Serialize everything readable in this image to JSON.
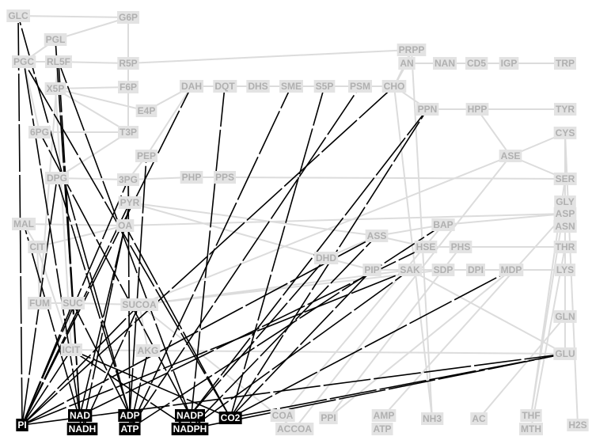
{
  "diagram": {
    "nodes": [
      {
        "id": "GLC",
        "label": "GLC",
        "style": "grey"
      },
      {
        "id": "G6P",
        "label": "G6P",
        "style": "grey"
      },
      {
        "id": "PGL",
        "label": "PGL",
        "style": "grey"
      },
      {
        "id": "PGC",
        "label": "PGC",
        "style": "grey"
      },
      {
        "id": "RL5P",
        "label": "RL5F",
        "style": "grey"
      },
      {
        "id": "R5P",
        "label": "R5P",
        "style": "grey"
      },
      {
        "id": "PRPP",
        "label": "PRPP",
        "style": "grey"
      },
      {
        "id": "F6P",
        "label": "F6P",
        "style": "grey"
      },
      {
        "id": "X5P",
        "label": "X5P",
        "style": "grey"
      },
      {
        "id": "E4P",
        "label": "E4P",
        "style": "grey"
      },
      {
        "id": "6PG",
        "label": "6PG",
        "style": "grey"
      },
      {
        "id": "T3P",
        "label": "T3P",
        "style": "grey"
      },
      {
        "id": "PEP",
        "label": "PEP",
        "style": "grey"
      },
      {
        "id": "DPG",
        "label": "DPG",
        "style": "grey"
      },
      {
        "id": "3PG",
        "label": "3PG",
        "style": "grey"
      },
      {
        "id": "PYR",
        "label": "PYR",
        "style": "grey"
      },
      {
        "id": "OA",
        "label": "OA",
        "style": "grey"
      },
      {
        "id": "MAL",
        "label": "MAL",
        "style": "grey"
      },
      {
        "id": "CIT",
        "label": "CIT",
        "style": "grey"
      },
      {
        "id": "FUM",
        "label": "FUM",
        "style": "grey"
      },
      {
        "id": "SUC",
        "label": "SUC",
        "style": "grey"
      },
      {
        "id": "SUCOA",
        "label": "SUCOA",
        "style": "grey"
      },
      {
        "id": "ICIT",
        "label": "ICIT",
        "style": "grey"
      },
      {
        "id": "AKG",
        "label": "AKG",
        "style": "grey"
      },
      {
        "id": "DAH",
        "label": "DAH",
        "style": "grey"
      },
      {
        "id": "DQT",
        "label": "DQT",
        "style": "grey"
      },
      {
        "id": "DHS",
        "label": "DHS",
        "style": "grey"
      },
      {
        "id": "SME",
        "label": "SME",
        "style": "grey"
      },
      {
        "id": "S5P",
        "label": "S5P",
        "style": "grey"
      },
      {
        "id": "PSM",
        "label": "PSM",
        "style": "grey"
      },
      {
        "id": "CHO",
        "label": "CHO",
        "style": "grey"
      },
      {
        "id": "AN",
        "label": "AN",
        "style": "grey"
      },
      {
        "id": "NAN",
        "label": "NAN",
        "style": "grey"
      },
      {
        "id": "CD5",
        "label": "CD5",
        "style": "grey"
      },
      {
        "id": "IGP",
        "label": "IGP",
        "style": "grey"
      },
      {
        "id": "TRP",
        "label": "TRP",
        "style": "grey"
      },
      {
        "id": "PPN",
        "label": "PPN",
        "style": "grey"
      },
      {
        "id": "HPP",
        "label": "HPP",
        "style": "grey"
      },
      {
        "id": "TYR",
        "label": "TYR",
        "style": "grey"
      },
      {
        "id": "CYS",
        "label": "CYS",
        "style": "grey"
      },
      {
        "id": "ASE",
        "label": "ASE",
        "style": "grey"
      },
      {
        "id": "SER",
        "label": "SER",
        "style": "grey"
      },
      {
        "id": "PHP",
        "label": "PHP",
        "style": "grey"
      },
      {
        "id": "PPS",
        "label": "PPS",
        "style": "grey"
      },
      {
        "id": "GLY",
        "label": "GLY",
        "style": "grey"
      },
      {
        "id": "ASP",
        "label": "ASP",
        "style": "grey"
      },
      {
        "id": "ASN",
        "label": "ASN",
        "style": "grey"
      },
      {
        "id": "BAP",
        "label": "BAP",
        "style": "grey"
      },
      {
        "id": "ASS",
        "label": "ASS",
        "style": "grey"
      },
      {
        "id": "HSE",
        "label": "HSE",
        "style": "grey"
      },
      {
        "id": "PHS",
        "label": "PHS",
        "style": "grey"
      },
      {
        "id": "THR",
        "label": "THR",
        "style": "grey"
      },
      {
        "id": "DHD",
        "label": "DHD",
        "style": "grey"
      },
      {
        "id": "PIP",
        "label": "PIP",
        "style": "grey"
      },
      {
        "id": "SAK",
        "label": "SAK",
        "style": "grey"
      },
      {
        "id": "SDP",
        "label": "SDP",
        "style": "grey"
      },
      {
        "id": "DPI",
        "label": "DPI",
        "style": "grey"
      },
      {
        "id": "MDP",
        "label": "MDP",
        "style": "grey"
      },
      {
        "id": "LYS",
        "label": "LYS",
        "style": "grey"
      },
      {
        "id": "GLN",
        "label": "GLN",
        "style": "grey"
      },
      {
        "id": "GLU",
        "label": "GLU",
        "style": "grey"
      },
      {
        "id": "PI",
        "label": "PI",
        "style": "black"
      },
      {
        "id": "NAD",
        "label": "NAD",
        "style": "black"
      },
      {
        "id": "NADH",
        "label": "NADH",
        "style": "black"
      },
      {
        "id": "ADP",
        "label": "ADP",
        "style": "black"
      },
      {
        "id": "ATP",
        "label": "ATP",
        "style": "black"
      },
      {
        "id": "NADP",
        "label": "NADP",
        "style": "black"
      },
      {
        "id": "NADPH",
        "label": "NADPH",
        "style": "black"
      },
      {
        "id": "CO2",
        "label": "CO2",
        "style": "black"
      },
      {
        "id": "COA",
        "label": "COA",
        "style": "grey"
      },
      {
        "id": "ACCOA",
        "label": "ACCOA",
        "style": "grey"
      },
      {
        "id": "PPI",
        "label": "PPI",
        "style": "grey"
      },
      {
        "id": "AMP",
        "label": "AMP",
        "style": "grey"
      },
      {
        "id": "ATP2",
        "label": "ATP",
        "style": "grey"
      },
      {
        "id": "NH3",
        "label": "NH3",
        "style": "grey"
      },
      {
        "id": "AC",
        "label": "AC",
        "style": "grey"
      },
      {
        "id": "THF",
        "label": "THF",
        "style": "grey"
      },
      {
        "id": "MTH",
        "label": "MTH",
        "style": "grey"
      },
      {
        "id": "H2S",
        "label": "H2S",
        "style": "grey"
      }
    ],
    "colors": {
      "grey_box": "#e3e3e3",
      "grey_text": "#b0b0b0",
      "grey_edge": "#dcdcdc",
      "black_box": "#000000",
      "black_text": "#ffffff",
      "black_edge": "#000000"
    }
  }
}
